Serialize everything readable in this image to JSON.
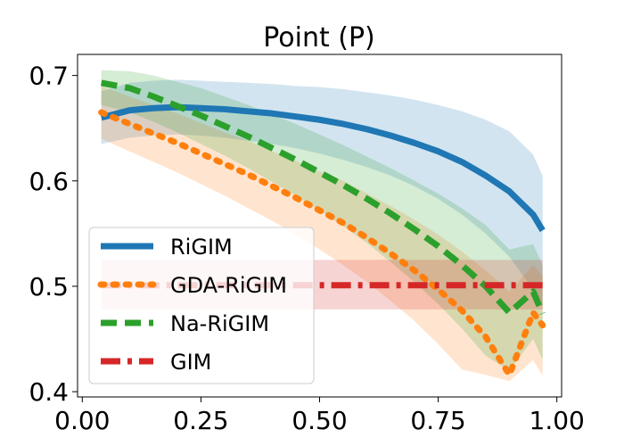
{
  "chart_data": {
    "type": "line",
    "title": "Point (P)",
    "xlabel": "",
    "ylabel": "",
    "xlim": [
      -0.01,
      1.01
    ],
    "ylim": [
      0.395,
      0.72
    ],
    "x_ticks": [
      0.0,
      0.25,
      0.5,
      0.75,
      1.0
    ],
    "x_tick_labels": [
      "0.00",
      "0.25",
      "0.50",
      "0.75",
      "1.00"
    ],
    "y_ticks": [
      0.4,
      0.5,
      0.6,
      0.7
    ],
    "y_tick_labels": [
      "0.4",
      "0.5",
      "0.6",
      "0.7"
    ],
    "grid": false,
    "legend_position": "lower-left",
    "x": [
      0.04,
      0.1,
      0.15,
      0.2,
      0.25,
      0.3,
      0.35,
      0.4,
      0.45,
      0.5,
      0.55,
      0.6,
      0.65,
      0.7,
      0.75,
      0.8,
      0.85,
      0.9,
      0.95,
      0.97
    ],
    "series": [
      {
        "name": "RiGIM",
        "color": "#1f77b4",
        "style": "solid",
        "values": [
          0.66,
          0.667,
          0.669,
          0.67,
          0.669,
          0.668,
          0.666,
          0.664,
          0.661,
          0.658,
          0.654,
          0.649,
          0.643,
          0.636,
          0.628,
          0.618,
          0.605,
          0.59,
          0.568,
          0.553
        ],
        "lower": [
          0.635,
          0.641,
          0.643,
          0.644,
          0.643,
          0.641,
          0.638,
          0.635,
          0.631,
          0.626,
          0.62,
          0.613,
          0.605,
          0.595,
          0.583,
          0.568,
          0.55,
          0.528,
          0.497,
          0.48
        ],
        "upper": [
          0.685,
          0.693,
          0.695,
          0.696,
          0.695,
          0.694,
          0.693,
          0.692,
          0.69,
          0.689,
          0.687,
          0.684,
          0.681,
          0.677,
          0.672,
          0.666,
          0.658,
          0.647,
          0.625,
          0.605
        ]
      },
      {
        "name": "GDA-RiGIM",
        "color": "#ff7f0e",
        "style": "dotted",
        "values": [
          0.665,
          0.654,
          0.645,
          0.636,
          0.626,
          0.616,
          0.606,
          0.595,
          0.584,
          0.572,
          0.56,
          0.546,
          0.531,
          0.515,
          0.497,
          0.477,
          0.452,
          0.416,
          0.475,
          0.463
        ],
        "lower": [
          0.64,
          0.628,
          0.618,
          0.608,
          0.597,
          0.586,
          0.574,
          0.562,
          0.549,
          0.535,
          0.52,
          0.504,
          0.486,
          0.467,
          0.445,
          0.421,
          0.416,
          0.41,
          0.43,
          0.415
        ],
        "upper": [
          0.69,
          0.68,
          0.672,
          0.664,
          0.655,
          0.646,
          0.638,
          0.628,
          0.619,
          0.609,
          0.6,
          0.588,
          0.576,
          0.563,
          0.549,
          0.533,
          0.515,
          0.495,
          0.52,
          0.51
        ]
      },
      {
        "name": "Na-RiGIM",
        "color": "#2ca02c",
        "style": "dashed",
        "values": [
          0.693,
          0.688,
          0.68,
          0.671,
          0.662,
          0.652,
          0.642,
          0.631,
          0.62,
          0.608,
          0.596,
          0.583,
          0.569,
          0.554,
          0.538,
          0.52,
          0.5,
          0.475,
          0.495,
          0.474
        ],
        "lower": [
          0.672,
          0.665,
          0.656,
          0.646,
          0.635,
          0.624,
          0.612,
          0.599,
          0.586,
          0.572,
          0.557,
          0.541,
          0.523,
          0.504,
          0.483,
          0.46,
          0.434,
          0.42,
          0.45,
          0.43
        ],
        "upper": [
          0.705,
          0.704,
          0.7,
          0.694,
          0.688,
          0.68,
          0.672,
          0.663,
          0.654,
          0.644,
          0.634,
          0.623,
          0.612,
          0.6,
          0.588,
          0.574,
          0.558,
          0.535,
          0.54,
          0.52
        ]
      },
      {
        "name": "GIM",
        "color": "#d62728",
        "style": "dashdot",
        "values": [
          0.501,
          0.501,
          0.501,
          0.501,
          0.501,
          0.501,
          0.501,
          0.501,
          0.501,
          0.501,
          0.501,
          0.501,
          0.501,
          0.501,
          0.501,
          0.501,
          0.501,
          0.501,
          0.501,
          0.501
        ],
        "lower": [
          0.478,
          0.478,
          0.478,
          0.478,
          0.478,
          0.478,
          0.478,
          0.478,
          0.478,
          0.478,
          0.478,
          0.478,
          0.478,
          0.478,
          0.478,
          0.478,
          0.478,
          0.478,
          0.478,
          0.478
        ],
        "upper": [
          0.525,
          0.525,
          0.525,
          0.525,
          0.525,
          0.525,
          0.525,
          0.525,
          0.525,
          0.525,
          0.525,
          0.525,
          0.525,
          0.525,
          0.525,
          0.525,
          0.525,
          0.525,
          0.525,
          0.525
        ]
      }
    ]
  }
}
